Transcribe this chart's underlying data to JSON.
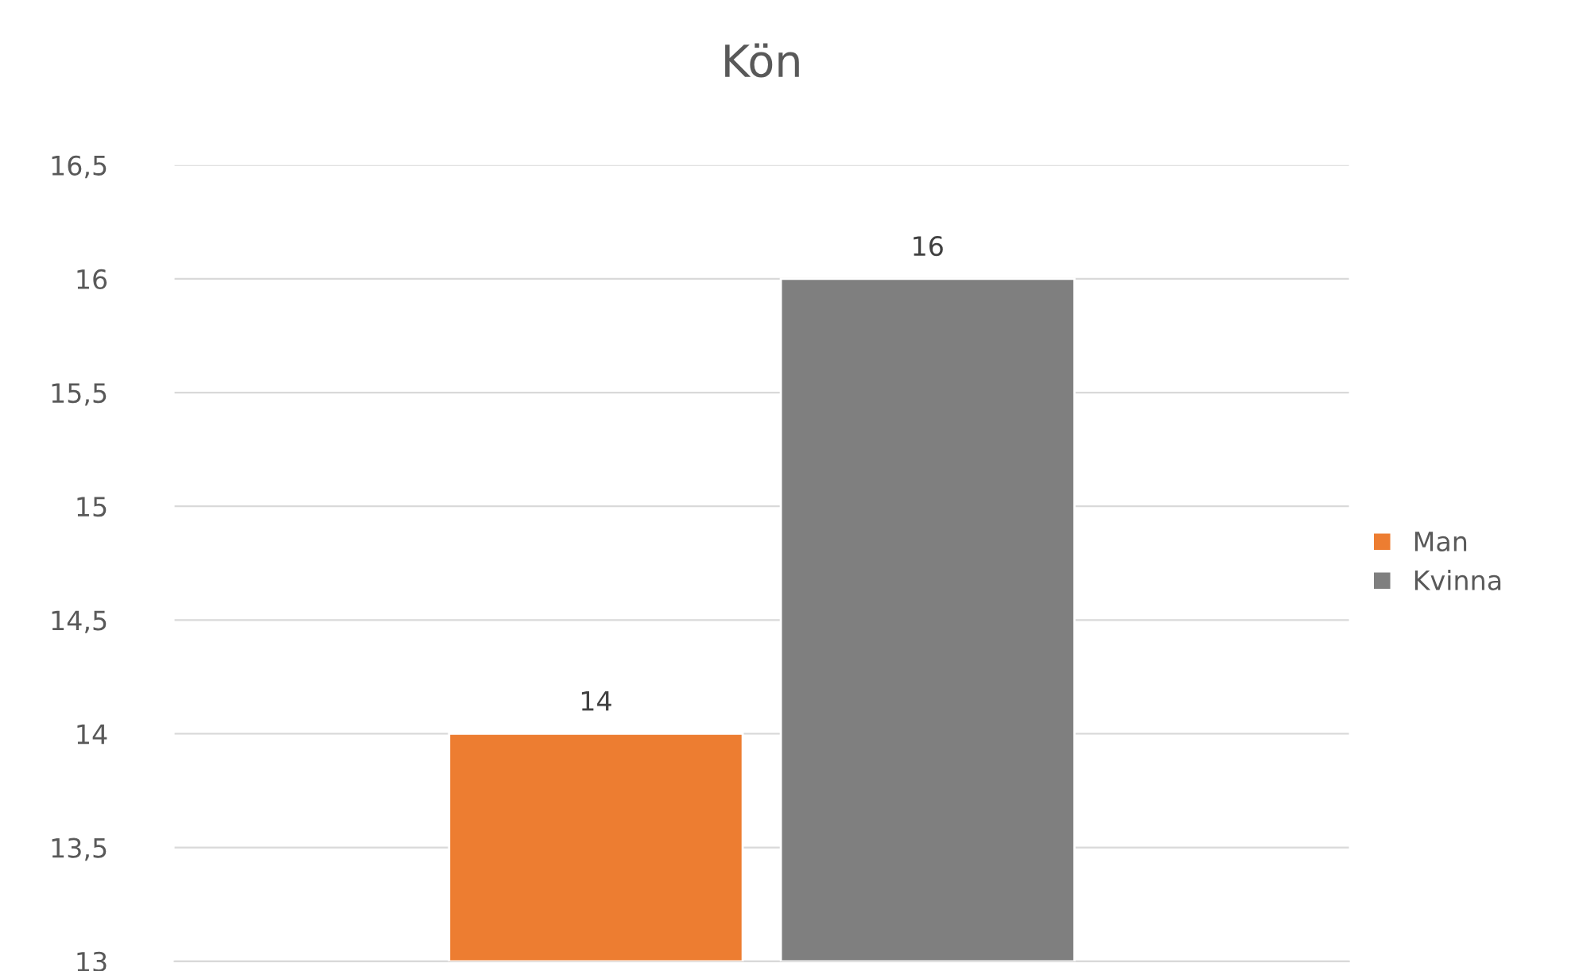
{
  "chart_data": {
    "type": "bar",
    "title": "Kön",
    "categories": [
      null
    ],
    "series": [
      {
        "name": "Man",
        "color": "#ed7d31",
        "values": [
          14
        ]
      },
      {
        "name": "Kvinna",
        "color": "#7f7f7f",
        "values": [
          16
        ]
      }
    ],
    "ylim": [
      13,
      16.5
    ],
    "yticks": [
      13,
      {
        "value": 13.5,
        "label": "13,5"
      },
      14,
      {
        "value": 14.5,
        "label": "14,5"
      },
      15,
      {
        "value": 15.5,
        "label": "15,5"
      },
      16,
      {
        "value": 16.5,
        "label": "16,5"
      }
    ],
    "grid": "y",
    "legend": "right",
    "data_labels": true
  }
}
